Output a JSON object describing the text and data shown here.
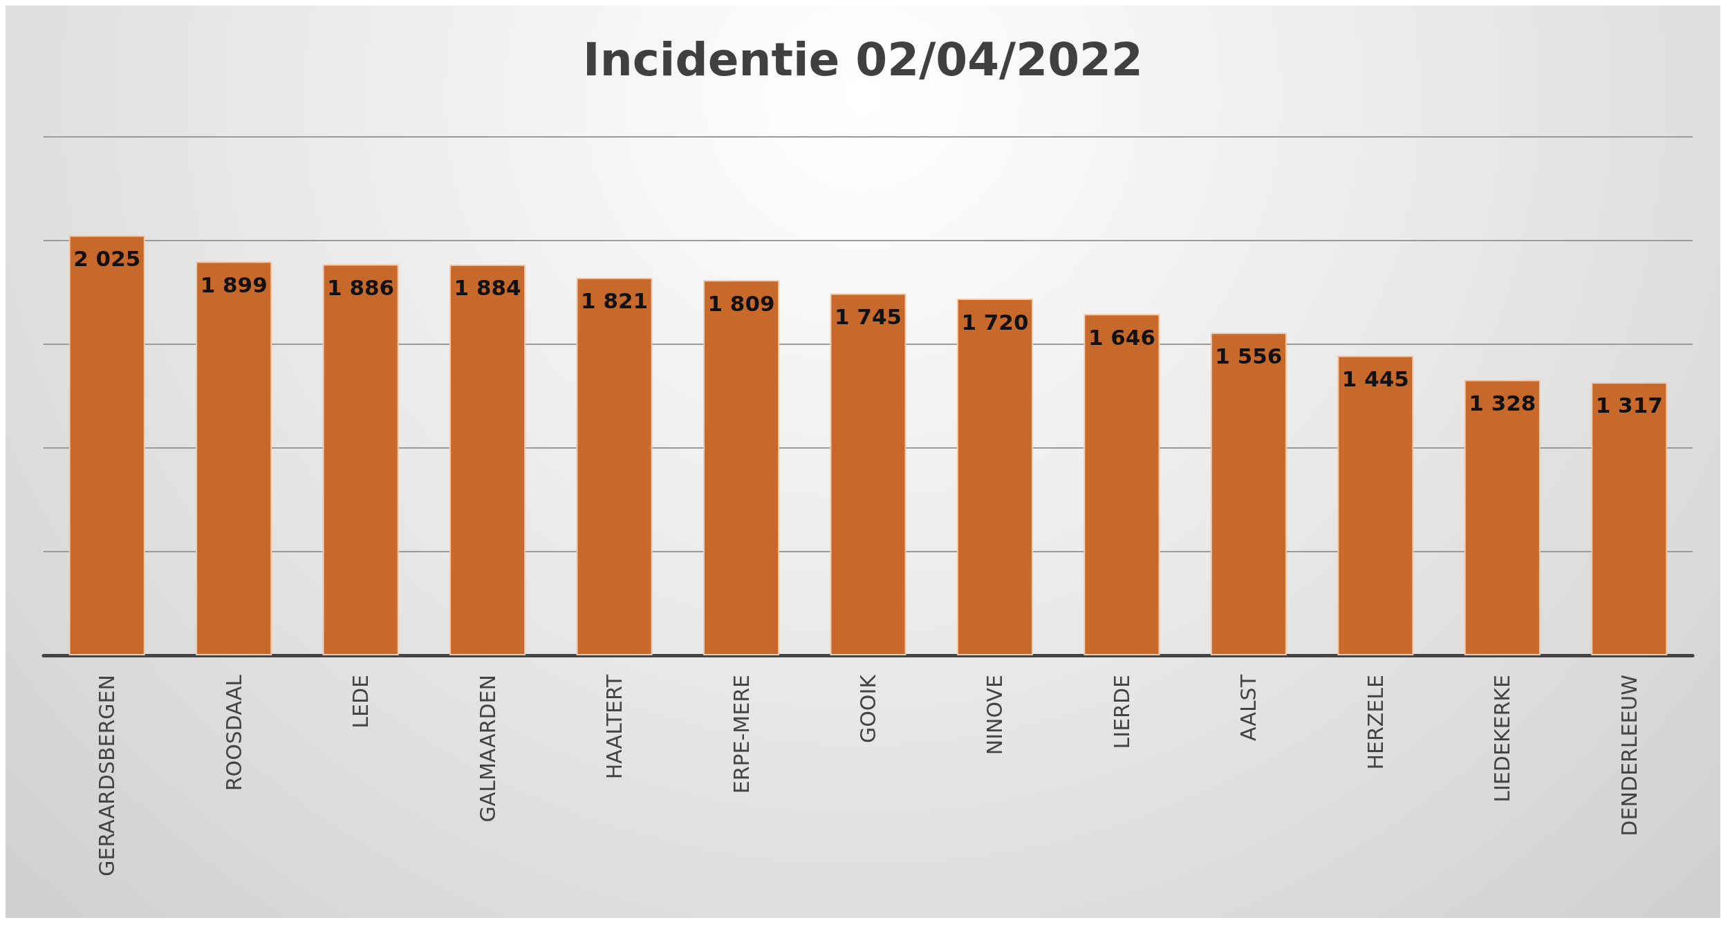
{
  "chart_data": {
    "type": "bar",
    "title": "Incidentie 02/04/2022",
    "categories": [
      "GERAARDSBERGEN",
      "ROOSDAAL",
      "LEDE",
      "GALMAARDEN",
      "HAALTERT",
      "ERPE-MERE",
      "GOOIK",
      "NINOVE",
      "LIERDE",
      "AALST",
      "HERZELE",
      "LIEDEKERKE",
      "DENDERLEEUW"
    ],
    "values": [
      2025,
      1899,
      1886,
      1884,
      1821,
      1809,
      1745,
      1720,
      1646,
      1556,
      1445,
      1328,
      1317
    ],
    "value_labels": [
      "2 025",
      "1 899",
      "1 886",
      "1 884",
      "1 821",
      "1 809",
      "1 745",
      "1 720",
      "1 646",
      "1 556",
      "1 445",
      "1 328",
      "1 317"
    ],
    "color": "#c8692c",
    "ylim": [
      0,
      2500
    ],
    "yticks": [
      {
        "value": 0,
        "label": null
      },
      {
        "value": 500,
        "label": null
      },
      {
        "value": 1000,
        "label": null
      },
      {
        "value": 1500,
        "label": null
      },
      {
        "value": 2000,
        "label": null
      },
      {
        "value": 2500,
        "label": null
      }
    ],
    "grid": "y",
    "tick_labels": "x"
  }
}
